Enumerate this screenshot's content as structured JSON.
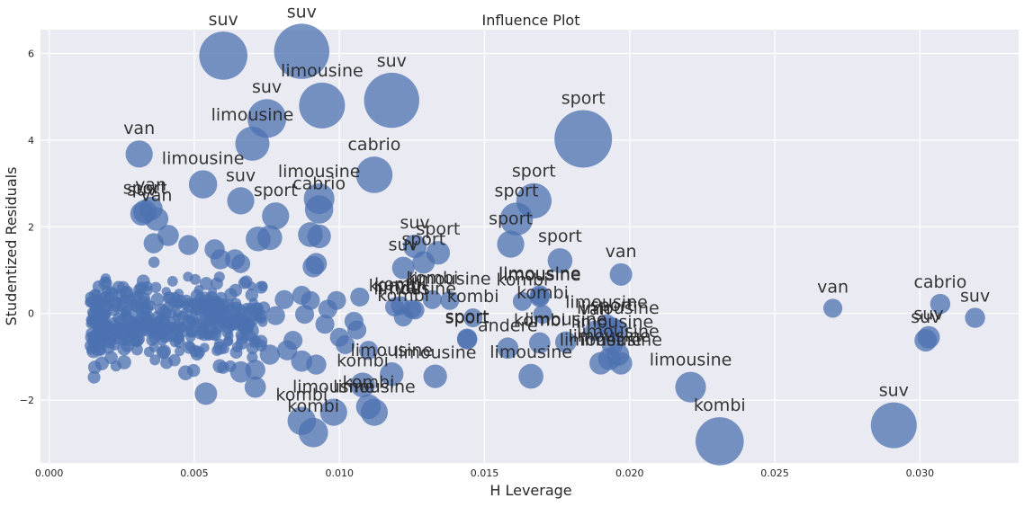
{
  "chart_data": {
    "type": "scatter",
    "title": "Influence Plot",
    "xlabel": "H Leverage",
    "ylabel": "Studentized Residuals",
    "xlim": [
      -0.0003,
      0.0334
    ],
    "ylim": [
      -3.45,
      6.55
    ],
    "xticks": [
      0.0,
      0.005,
      0.01,
      0.015,
      0.02,
      0.025,
      0.03
    ],
    "xtick_labels": [
      "0.000",
      "0.005",
      "0.010",
      "0.015",
      "0.020",
      "0.025",
      "0.030"
    ],
    "yticks": [
      -2,
      0,
      2,
      4,
      6
    ],
    "ytick_labels": [
      "−2",
      "0",
      "2",
      "4",
      "6"
    ],
    "grid": true,
    "colors": {
      "background": "#eaeaf2",
      "grid": "#ffffff",
      "marker": "#4c72b0"
    },
    "labeled_points": [
      {
        "x": 0.0087,
        "y": 6.05,
        "size": 1.9,
        "label": "suv"
      },
      {
        "x": 0.006,
        "y": 5.95,
        "size": 1.6,
        "label": "suv"
      },
      {
        "x": 0.0118,
        "y": 4.92,
        "size": 1.9,
        "label": "suv"
      },
      {
        "x": 0.0094,
        "y": 4.8,
        "size": 1.5,
        "label": "limousine"
      },
      {
        "x": 0.0075,
        "y": 4.5,
        "size": 1.2,
        "label": "suv"
      },
      {
        "x": 0.007,
        "y": 3.92,
        "size": 1.0,
        "label": "limousine"
      },
      {
        "x": 0.0184,
        "y": 4.03,
        "size": 2.0,
        "label": "sport"
      },
      {
        "x": 0.0031,
        "y": 3.68,
        "size": 0.7,
        "label": "van"
      },
      {
        "x": 0.0112,
        "y": 3.2,
        "size": 1.1,
        "label": "cabrio"
      },
      {
        "x": 0.0053,
        "y": 2.98,
        "size": 0.75,
        "label": "limousine"
      },
      {
        "x": 0.0093,
        "y": 2.65,
        "size": 0.85,
        "label": "limousine"
      },
      {
        "x": 0.0167,
        "y": 2.6,
        "size": 1.05,
        "label": "sport"
      },
      {
        "x": 0.0066,
        "y": 2.6,
        "size": 0.7,
        "label": "suv"
      },
      {
        "x": 0.0093,
        "y": 2.4,
        "size": 0.75,
        "label": "cabrio"
      },
      {
        "x": 0.0035,
        "y": 2.42,
        "size": 0.55,
        "label": "van"
      },
      {
        "x": 0.0033,
        "y": 2.35,
        "size": 0.55,
        "label": "sport"
      },
      {
        "x": 0.0032,
        "y": 2.3,
        "size": 0.55,
        "label": "suv"
      },
      {
        "x": 0.0037,
        "y": 2.18,
        "size": 0.55,
        "label": "van"
      },
      {
        "x": 0.0078,
        "y": 2.25,
        "size": 0.7,
        "label": "sport"
      },
      {
        "x": 0.0161,
        "y": 2.18,
        "size": 0.95,
        "label": "sport"
      },
      {
        "x": 0.0159,
        "y": 1.6,
        "size": 0.7,
        "label": "sport"
      },
      {
        "x": 0.0126,
        "y": 1.55,
        "size": 0.55,
        "label": "suv"
      },
      {
        "x": 0.0134,
        "y": 1.4,
        "size": 0.55,
        "label": "sport"
      },
      {
        "x": 0.0176,
        "y": 1.22,
        "size": 0.6,
        "label": "sport"
      },
      {
        "x": 0.0129,
        "y": 1.18,
        "size": 0.5,
        "label": "sport"
      },
      {
        "x": 0.0122,
        "y": 1.05,
        "size": 0.5,
        "label": "suv"
      },
      {
        "x": 0.0197,
        "y": 0.9,
        "size": 0.5,
        "label": "van"
      },
      {
        "x": 0.0169,
        "y": 0.42,
        "size": 0.4,
        "label": "limousine"
      },
      {
        "x": 0.0169,
        "y": 0.38,
        "size": 0.4,
        "label": "limousine"
      },
      {
        "x": 0.0138,
        "y": 0.3,
        "size": 0.35,
        "label": "limousine"
      },
      {
        "x": 0.0132,
        "y": 0.32,
        "size": 0.35,
        "label": "kombi"
      },
      {
        "x": 0.0163,
        "y": 0.28,
        "size": 0.35,
        "label": "kombi"
      },
      {
        "x": 0.0121,
        "y": 0.18,
        "size": 0.35,
        "label": "kombi"
      },
      {
        "x": 0.0119,
        "y": 0.15,
        "size": 0.35,
        "label": "kombi"
      },
      {
        "x": 0.0125,
        "y": 0.1,
        "size": 0.35,
        "label": "van"
      },
      {
        "x": 0.0126,
        "y": 0.08,
        "size": 0.35,
        "label": "limousine"
      },
      {
        "x": 0.0146,
        "y": -0.1,
        "size": 0.35,
        "label": "kombi"
      },
      {
        "x": 0.017,
        "y": -0.02,
        "size": 0.35,
        "label": "kombi"
      },
      {
        "x": 0.0122,
        "y": -0.08,
        "size": 0.35,
        "label": "kombi"
      },
      {
        "x": 0.027,
        "y": 0.12,
        "size": 0.35,
        "label": "van"
      },
      {
        "x": 0.0307,
        "y": 0.22,
        "size": 0.4,
        "label": "cabrio"
      },
      {
        "x": 0.0319,
        "y": -0.1,
        "size": 0.4,
        "label": "suv"
      },
      {
        "x": 0.0303,
        "y": -0.55,
        "size": 0.5,
        "label": "suv"
      },
      {
        "x": 0.0302,
        "y": -0.62,
        "size": 0.5,
        "label": "suv"
      },
      {
        "x": 0.0144,
        "y": -0.58,
        "size": 0.4,
        "label": "sport"
      },
      {
        "x": 0.0144,
        "y": -0.6,
        "size": 0.4,
        "label": "sport"
      },
      {
        "x": 0.0192,
        "y": -0.25,
        "size": 0.4,
        "label": "limousine"
      },
      {
        "x": 0.0194,
        "y": -0.32,
        "size": 0.4,
        "label": "sport"
      },
      {
        "x": 0.0196,
        "y": -0.38,
        "size": 0.4,
        "label": "limousine"
      },
      {
        "x": 0.0188,
        "y": -0.4,
        "size": 0.4,
        "label": "van"
      },
      {
        "x": 0.0178,
        "y": -0.66,
        "size": 0.45,
        "label": "limousine"
      },
      {
        "x": 0.0169,
        "y": -0.68,
        "size": 0.45,
        "label": "kombi"
      },
      {
        "x": 0.0194,
        "y": -0.72,
        "size": 0.45,
        "label": "limousine"
      },
      {
        "x": 0.0158,
        "y": -0.8,
        "size": 0.45,
        "label": "andere"
      },
      {
        "x": 0.0196,
        "y": -0.95,
        "size": 0.5,
        "label": "limousine"
      },
      {
        "x": 0.0193,
        "y": -1.05,
        "size": 0.5,
        "label": "limousine"
      },
      {
        "x": 0.019,
        "y": -1.15,
        "size": 0.5,
        "label": "limousine"
      },
      {
        "x": 0.0197,
        "y": -1.15,
        "size": 0.5,
        "label": "limousine"
      },
      {
        "x": 0.0166,
        "y": -1.45,
        "size": 0.6,
        "label": "limousine"
      },
      {
        "x": 0.0118,
        "y": -1.4,
        "size": 0.55,
        "label": "limousine"
      },
      {
        "x": 0.0133,
        "y": -1.45,
        "size": 0.55,
        "label": "limousine"
      },
      {
        "x": 0.0221,
        "y": -1.7,
        "size": 0.85,
        "label": "limousine"
      },
      {
        "x": 0.0108,
        "y": -1.65,
        "size": 0.6,
        "label": "kombi"
      },
      {
        "x": 0.011,
        "y": -2.15,
        "size": 0.6,
        "label": "kombi"
      },
      {
        "x": 0.0112,
        "y": -2.28,
        "size": 0.7,
        "label": "limousine"
      },
      {
        "x": 0.0098,
        "y": -2.28,
        "size": 0.7,
        "label": "limousine"
      },
      {
        "x": 0.0087,
        "y": -2.48,
        "size": 0.75,
        "label": "kombi"
      },
      {
        "x": 0.0091,
        "y": -2.75,
        "size": 0.8,
        "label": "kombi"
      },
      {
        "x": 0.0231,
        "y": -2.95,
        "size": 1.6,
        "label": "kombi"
      },
      {
        "x": 0.0291,
        "y": -2.58,
        "size": 1.5,
        "label": "suv"
      }
    ],
    "unlabeled_points": [
      [
        0.0072,
        1.72,
        0.6
      ],
      [
        0.0076,
        1.75,
        0.6
      ],
      [
        0.009,
        1.82,
        0.6
      ],
      [
        0.0093,
        1.78,
        0.55
      ],
      [
        0.0091,
        1.08,
        0.45
      ],
      [
        0.0092,
        1.15,
        0.45
      ],
      [
        0.0099,
        0.3,
        0.35
      ],
      [
        0.0096,
        0.1,
        0.35
      ],
      [
        0.009,
        0.3,
        0.35
      ],
      [
        0.0095,
        -0.25,
        0.35
      ],
      [
        0.01,
        -0.55,
        0.35
      ],
      [
        0.0102,
        -0.72,
        0.35
      ],
      [
        0.0106,
        -0.38,
        0.35
      ],
      [
        0.0092,
        -1.18,
        0.4
      ],
      [
        0.0087,
        -1.1,
        0.45
      ],
      [
        0.0071,
        -1.7,
        0.45
      ],
      [
        0.0054,
        -1.85,
        0.5
      ],
      [
        0.0064,
        1.25,
        0.4
      ],
      [
        0.0059,
        1.25,
        0.4
      ],
      [
        0.0057,
        1.48,
        0.4
      ],
      [
        0.0048,
        1.58,
        0.4
      ],
      [
        0.0041,
        1.8,
        0.45
      ],
      [
        0.0036,
        1.62,
        0.4
      ],
      [
        0.0066,
        1.15,
        0.35
      ],
      [
        0.0087,
        0.42,
        0.35
      ],
      [
        0.0081,
        0.32,
        0.35
      ],
      [
        0.0078,
        -0.05,
        0.35
      ],
      [
        0.0082,
        -0.85,
        0.4
      ],
      [
        0.0076,
        -0.95,
        0.4
      ],
      [
        0.0069,
        -0.4,
        0.35
      ],
      [
        0.0066,
        -1.35,
        0.45
      ],
      [
        0.0071,
        -1.3,
        0.4
      ],
      [
        0.0084,
        -0.62,
        0.35
      ],
      [
        0.0088,
        -0.02,
        0.35
      ],
      [
        0.0107,
        0.38,
        0.35
      ],
      [
        0.0105,
        -0.18,
        0.35
      ],
      [
        0.011,
        -0.85,
        0.35
      ]
    ]
  }
}
